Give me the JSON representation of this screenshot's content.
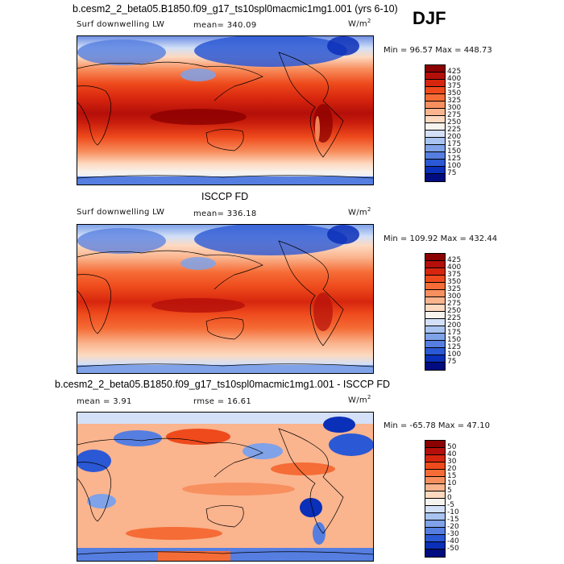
{
  "season": "DJF",
  "panels": [
    {
      "title": "b.cesm2_2_beta05.B1850.f09_g17_ts10spl0macmic1mg1.001 (yrs 6-10)",
      "variable": "Surf downwelling LW",
      "mean_label": "mean= 340.09",
      "units_base": "W/m",
      "units_exp": "2",
      "minmax": "Min =  96.57 Max = 448.73",
      "colorbar": {
        "levels": [
          "425",
          "400",
          "375",
          "350",
          "325",
          "300",
          "275",
          "250",
          "225",
          "200",
          "175",
          "150",
          "125",
          "100",
          "75"
        ],
        "colors": [
          "#8b0000",
          "#b40f0a",
          "#d7260e",
          "#ee4a1c",
          "#f56c36",
          "#f88f5e",
          "#fab48e",
          "#fdd9c0",
          "#f7f3ef",
          "#d3e0f7",
          "#a9c4f0",
          "#7fa2e8",
          "#557ee0",
          "#2b58d4",
          "#0a2fb8",
          "#000c80"
        ]
      }
    },
    {
      "title": "ISCCP FD",
      "variable": "Surf downwelling LW",
      "mean_label": "mean= 336.18",
      "units_base": "W/m",
      "units_exp": "2",
      "minmax": "Min = 109.92 Max = 432.44",
      "colorbar": {
        "levels": [
          "425",
          "400",
          "375",
          "350",
          "325",
          "300",
          "275",
          "250",
          "225",
          "200",
          "175",
          "150",
          "125",
          "100",
          "75"
        ],
        "colors": [
          "#8b0000",
          "#b40f0a",
          "#d7260e",
          "#ee4a1c",
          "#f56c36",
          "#f88f5e",
          "#fab48e",
          "#fdd9c0",
          "#f7f3ef",
          "#d3e0f7",
          "#a9c4f0",
          "#7fa2e8",
          "#557ee0",
          "#2b58d4",
          "#0a2fb8",
          "#000c80"
        ]
      }
    },
    {
      "title": "b.cesm2_2_beta05.B1850.f09_g17_ts10spl0macmic1mg1.001 - ISCCP FD",
      "mean_label": "mean =    3.91",
      "rmse_label": "rmse =   16.61",
      "units_base": "W/m",
      "units_exp": "2",
      "minmax": "Min = -65.78 Max =  47.10",
      "colorbar": {
        "levels": [
          "50",
          "40",
          "30",
          "20",
          "15",
          "10",
          "5",
          "0",
          "-5",
          "-10",
          "-15",
          "-20",
          "-30",
          "-40",
          "-50"
        ],
        "colors": [
          "#8b0000",
          "#b40f0a",
          "#d7260e",
          "#ee4a1c",
          "#f56c36",
          "#f88f5e",
          "#fab48e",
          "#fdd9c0",
          "#f7f3ef",
          "#d3e0f7",
          "#a9c4f0",
          "#7fa2e8",
          "#557ee0",
          "#2b58d4",
          "#0a2fb8",
          "#000c80"
        ]
      }
    }
  ]
}
